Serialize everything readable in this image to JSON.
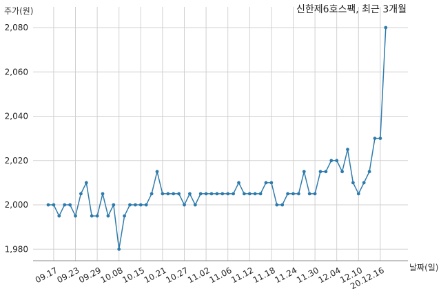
{
  "chart_data": {
    "type": "line",
    "title": "신한제6호스팩, 최근 3개월",
    "ylabel": "주가(원)",
    "xlabel": "날짜(일)",
    "ylim": [
      1975,
      2085
    ],
    "yticks": [
      1980,
      2000,
      2020,
      2040,
      2060,
      2080
    ],
    "ytick_labels": [
      "1,980",
      "2,000",
      "2,020",
      "2,040",
      "2,060",
      "2,080"
    ],
    "x_tick_labels": [
      "09.17",
      "09.23",
      "09.29",
      "10.08",
      "10.15",
      "10.21",
      "10.27",
      "11.02",
      "11.06",
      "11.12",
      "11.18",
      "11.24",
      "11.30",
      "12.04",
      "12.10",
      "20.12.16"
    ],
    "x_tick_index": [
      1,
      5,
      9,
      13,
      17,
      21,
      25,
      29,
      33,
      37,
      41,
      45,
      49,
      53,
      57,
      61
    ],
    "grid": true,
    "line_color": "#2e7bab",
    "series": [
      {
        "values": [
          2000,
          2000,
          1995,
          2000,
          2000,
          1995,
          2005,
          2010,
          1995,
          1995,
          2005,
          1995,
          2000,
          1980,
          1995,
          2000,
          2000,
          2000,
          2000,
          2005,
          2015,
          2005,
          2005,
          2005,
          2005,
          2000,
          2005,
          2000,
          2005,
          2005,
          2005,
          2005,
          2005,
          2005,
          2005,
          2010,
          2005,
          2005,
          2005,
          2005,
          2010,
          2010,
          2000,
          2000,
          2005,
          2005,
          2005,
          2015,
          2005,
          2005,
          2015,
          2015,
          2020,
          2020,
          2015,
          2025,
          2010,
          2005,
          2010,
          2015,
          2030,
          2030,
          2080
        ]
      }
    ]
  }
}
